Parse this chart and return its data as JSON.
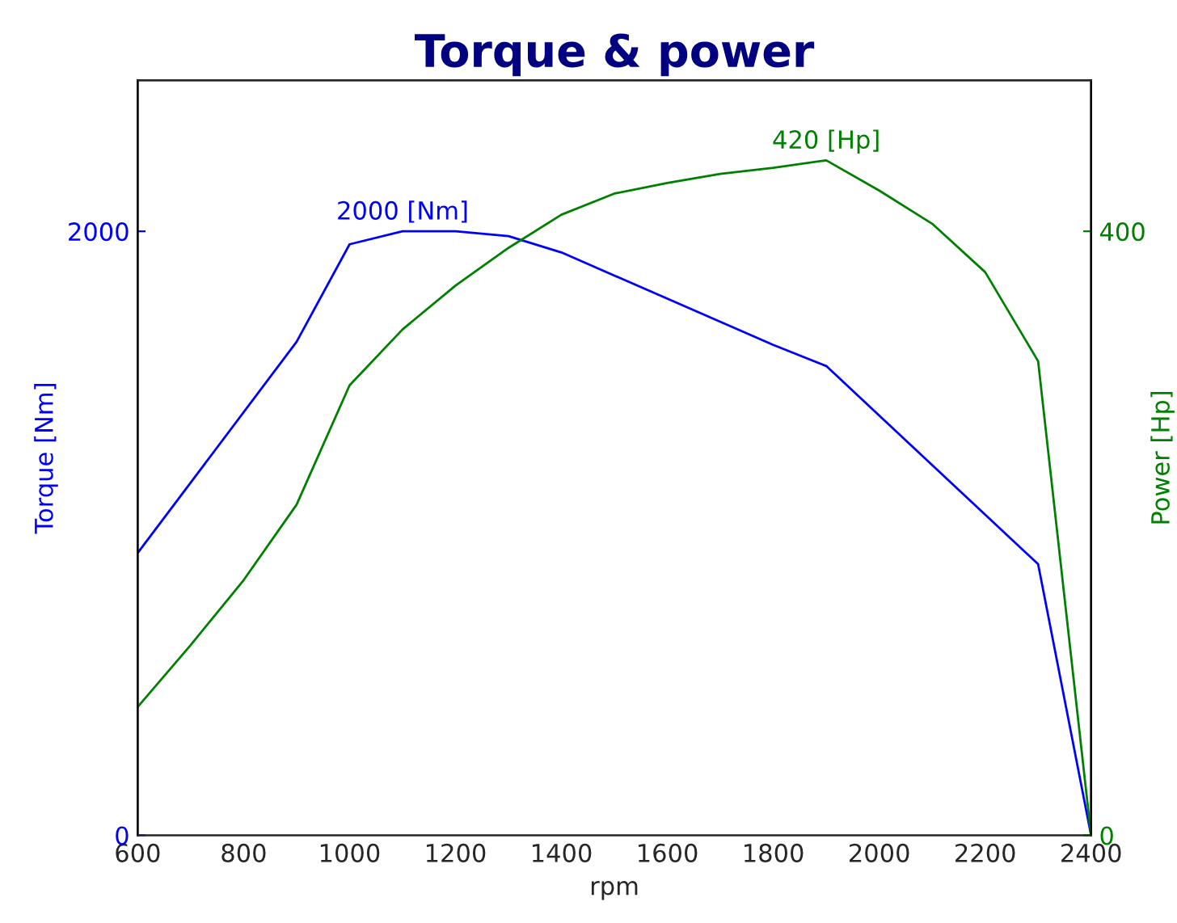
{
  "chart_data": {
    "type": "line",
    "title": "Torque & power",
    "xlabel": "rpm",
    "ylabel": "Torque [Nm]",
    "y2label": "Power [Hp]",
    "xlim": [
      600,
      2400
    ],
    "xticks": [
      600,
      800,
      1000,
      1200,
      1400,
      1600,
      1800,
      2000,
      2200,
      2400
    ],
    "ylim": [
      0,
      2500
    ],
    "yticks": [
      0,
      2000
    ],
    "y2lim": [
      0,
      500
    ],
    "y2ticks": [
      0,
      400
    ],
    "grid": false,
    "legend": false,
    "series": [
      {
        "color": "#0000ff",
        "x": [
          600,
          900,
          1000,
          1100,
          1200,
          1300,
          1400,
          1800,
          1900,
          2300,
          2400
        ],
        "values": [
          935,
          1634,
          1957,
          2000,
          2000,
          1984,
          1930,
          1624,
          1554,
          898,
          0
        ]
      },
      {
        "color": "#008000",
        "axis": "y2",
        "x": [
          600,
          700,
          800,
          900,
          1000,
          1100,
          1200,
          1300,
          1400,
          1500,
          1600,
          1700,
          1800,
          1900,
          2000,
          2100,
          2200,
          2300,
          2400
        ],
        "values": [
          85,
          126,
          169,
          219,
          298,
          335,
          364,
          389,
          411,
          425,
          432,
          438,
          442,
          447,
          427,
          405,
          373,
          314,
          0
        ]
      }
    ],
    "annotations": [
      "2000 [Nm]",
      "420 [Hp]"
    ]
  }
}
